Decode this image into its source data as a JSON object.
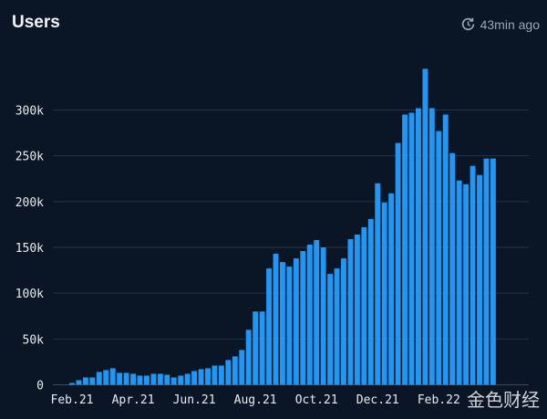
{
  "header": {
    "title": "Users",
    "updated": "43min ago",
    "updated_icon": "clock-refresh-icon"
  },
  "watermark": "金色财经",
  "chart_data": {
    "type": "bar",
    "title": "Users",
    "xlabel": "",
    "ylabel": "",
    "ylim": [
      0,
      350000
    ],
    "yticks": [
      0,
      50000,
      100000,
      150000,
      200000,
      250000,
      300000
    ],
    "ytick_labels": [
      "0",
      "50k",
      "100k",
      "150k",
      "200k",
      "250k",
      "300k"
    ],
    "xtick_labels": [
      {
        "label": "Feb.21",
        "index": 0
      },
      {
        "label": "Apr.21",
        "index": 9
      },
      {
        "label": "Jun.21",
        "index": 18
      },
      {
        "label": "Aug.21",
        "index": 27
      },
      {
        "label": "Oct.21",
        "index": 36
      },
      {
        "label": "Dec.21",
        "index": 45
      },
      {
        "label": "Feb.22",
        "index": 54
      }
    ],
    "grid": true,
    "bar_color": "#2196f3",
    "values": [
      2000,
      5000,
      8000,
      8000,
      14000,
      16000,
      18000,
      13000,
      13000,
      12000,
      10000,
      10000,
      12000,
      12000,
      11000,
      8000,
      10000,
      12000,
      15000,
      17000,
      18000,
      21000,
      21000,
      27000,
      31000,
      38000,
      60000,
      80000,
      80000,
      127000,
      143000,
      134000,
      129000,
      138000,
      146000,
      153000,
      158000,
      150000,
      121000,
      127000,
      138000,
      159000,
      164000,
      172000,
      181000,
      220000,
      199000,
      209000,
      264000,
      295000,
      297000,
      302000,
      345000,
      302000,
      277000,
      295000,
      253000,
      223000,
      219000,
      239000,
      229000,
      247000,
      247000
    ]
  }
}
